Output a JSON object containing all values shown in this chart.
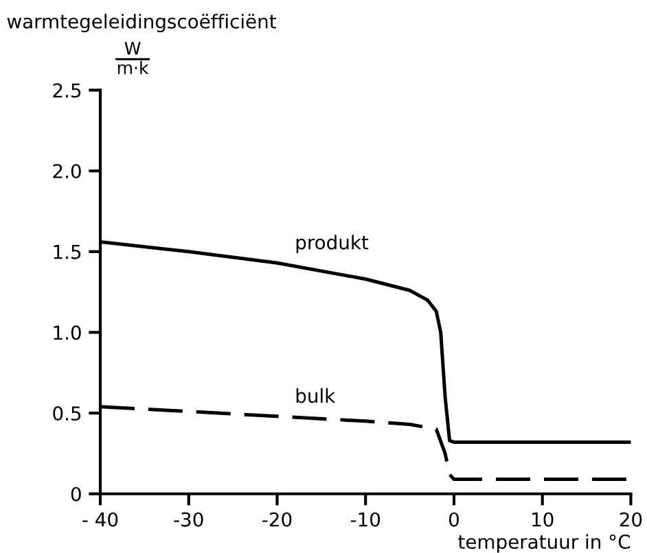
{
  "chart_data": {
    "type": "line",
    "ylabel": "warmtegeleidingscoëfficiënt",
    "xlabel": "temperatuur in °C",
    "annotations": [
      "W",
      "m·k"
    ],
    "xlim": [
      -40,
      20
    ],
    "xticks": [
      {
        "value": -40,
        "label": "- 40"
      },
      {
        "value": -30,
        "label": "-30"
      },
      {
        "value": -20,
        "label": "-20"
      },
      {
        "value": -10,
        "label": "-10"
      },
      0,
      10,
      20
    ],
    "ylim": [
      0,
      2.5
    ],
    "yticks": [
      {
        "value": 0,
        "label": "0"
      },
      0.5,
      {
        "value": 1,
        "label": "1.0"
      },
      1.5,
      {
        "value": 2,
        "label": "2.0"
      },
      2.5
    ],
    "grid": false,
    "legend": false,
    "marker": "none",
    "series": [
      {
        "name": "produkt",
        "color": "#000000",
        "line_style": "solid",
        "x": [
          -40,
          -30,
          -20,
          -10,
          -5,
          -3,
          -2,
          -1.5,
          -1,
          -0.5,
          0,
          5,
          10,
          20
        ],
        "values": [
          1.56,
          1.5,
          1.43,
          1.33,
          1.26,
          1.2,
          1.13,
          1.0,
          0.6,
          0.33,
          0.32,
          0.32,
          0.32,
          0.32
        ]
      },
      {
        "name": "bulk",
        "color": "#000000",
        "line_style": "dashed",
        "x": [
          -40,
          -30,
          -20,
          -10,
          -5,
          -2,
          -1,
          -0.5,
          0,
          5,
          10,
          20
        ],
        "values": [
          0.54,
          0.51,
          0.48,
          0.45,
          0.43,
          0.4,
          0.25,
          0.12,
          0.09,
          0.09,
          0.09,
          0.09
        ]
      }
    ]
  }
}
